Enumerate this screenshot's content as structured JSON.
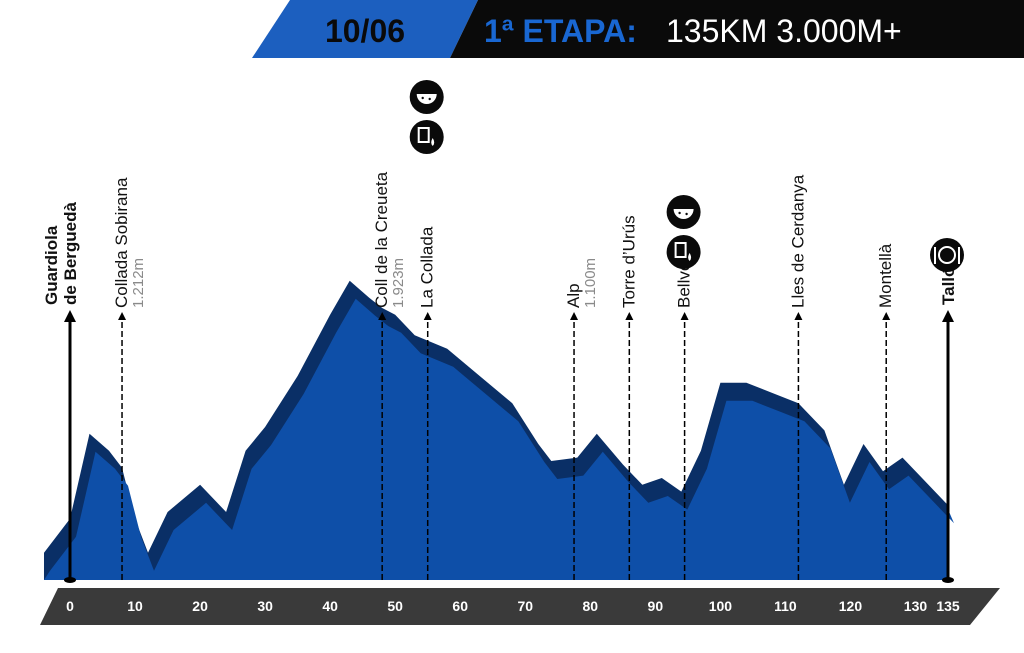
{
  "header": {
    "date": "10/06",
    "stage_label": "1ª ETAPA:",
    "stage_info": "135KM 3.000M+"
  },
  "colors": {
    "header_blue": "#1c5fbf",
    "header_black": "#0a0a0a",
    "profile_fill": "#0e4fa8",
    "profile_shadow": "#0a2f66",
    "axis_band": "#3a3a3a"
  },
  "chart_data": {
    "type": "area",
    "x_unit": "km",
    "xlim": [
      0,
      135
    ],
    "ylim_note": "relative altitude profile (no vertical scale printed)",
    "ticks": [
      0,
      10,
      20,
      30,
      40,
      50,
      60,
      70,
      80,
      90,
      100,
      110,
      120,
      130,
      135
    ],
    "profile": [
      [
        -4,
        0.08
      ],
      [
        0,
        0.18
      ],
      [
        3,
        0.43
      ],
      [
        6,
        0.38
      ],
      [
        8,
        0.33
      ],
      [
        10,
        0.18
      ],
      [
        12,
        0.08
      ],
      [
        15,
        0.2
      ],
      [
        20,
        0.28
      ],
      [
        24,
        0.2
      ],
      [
        27,
        0.38
      ],
      [
        30,
        0.45
      ],
      [
        35,
        0.6
      ],
      [
        40,
        0.78
      ],
      [
        43,
        0.88
      ],
      [
        46,
        0.83
      ],
      [
        48,
        0.8
      ],
      [
        50,
        0.78
      ],
      [
        53,
        0.72
      ],
      [
        58,
        0.68
      ],
      [
        63,
        0.6
      ],
      [
        68,
        0.52
      ],
      [
        72,
        0.4
      ],
      [
        74,
        0.35
      ],
      [
        78,
        0.36
      ],
      [
        81,
        0.43
      ],
      [
        85,
        0.34
      ],
      [
        88,
        0.28
      ],
      [
        91,
        0.3
      ],
      [
        94,
        0.26
      ],
      [
        97,
        0.38
      ],
      [
        100,
        0.58
      ],
      [
        104,
        0.58
      ],
      [
        108,
        0.55
      ],
      [
        112,
        0.52
      ],
      [
        116,
        0.44
      ],
      [
        119,
        0.28
      ],
      [
        122,
        0.4
      ],
      [
        125,
        0.32
      ],
      [
        128,
        0.36
      ],
      [
        131,
        0.3
      ],
      [
        135,
        0.22
      ]
    ],
    "locations": [
      {
        "name": "Guardiola de Berguedà",
        "lines": [
          "Guardiola",
          "de Berguedà"
        ],
        "km": 0,
        "alt": "",
        "bold": true,
        "endpoint": true
      },
      {
        "name": "Collada Sobirana",
        "lines": [
          "Collada Sobirana"
        ],
        "km": 8,
        "alt": "1.212m",
        "bold": false,
        "endpoint": false
      },
      {
        "name": "Coll de la Creueta",
        "lines": [
          "Coll de la Creueta"
        ],
        "km": 48,
        "alt": "1.923m",
        "bold": false,
        "endpoint": false
      },
      {
        "name": "La Collada",
        "lines": [
          "La Collada"
        ],
        "km": 55,
        "alt": "",
        "bold": false,
        "endpoint": false
      },
      {
        "name": "Alp",
        "lines": [
          "Alp"
        ],
        "km": 77.5,
        "alt": "1.100m",
        "bold": false,
        "endpoint": false
      },
      {
        "name": "Torre d'Urús",
        "lines": [
          "Torre d’Urús"
        ],
        "km": 86,
        "alt": "",
        "bold": false,
        "endpoint": false
      },
      {
        "name": "Bellver",
        "lines": [
          "Bellver"
        ],
        "km": 94.5,
        "alt": "",
        "bold": false,
        "endpoint": false
      },
      {
        "name": "Lles de Cerdanya",
        "lines": [
          "Lles de Cerdanya"
        ],
        "km": 112,
        "alt": "",
        "bold": false,
        "endpoint": false
      },
      {
        "name": "Montellà",
        "lines": [
          "Montellà"
        ],
        "km": 125.5,
        "alt": "",
        "bold": false,
        "endpoint": false
      },
      {
        "name": "Talló",
        "lines": [
          "Talló"
        ],
        "km": 135,
        "alt": "",
        "bold": true,
        "endpoint": true
      }
    ],
    "icons": [
      {
        "name": "food-icon",
        "km": 55,
        "slot": 0
      },
      {
        "name": "drink-icon",
        "km": 55,
        "slot": 1
      },
      {
        "name": "food-icon",
        "km": 94.5,
        "slot": 0
      },
      {
        "name": "drink-icon",
        "km": 94.5,
        "slot": 1
      },
      {
        "name": "meal-icon",
        "km": 135,
        "slot": 0
      }
    ]
  }
}
